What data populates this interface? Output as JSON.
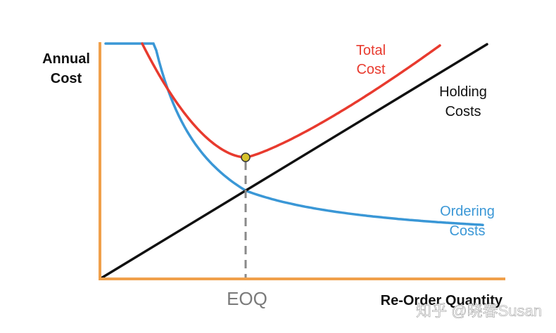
{
  "chart_data": {
    "type": "line",
    "ylabel_lines": [
      "Annual",
      "Cost"
    ],
    "xlabel": "Re-Order Quantity",
    "x_tick_label": "EOQ",
    "series": [
      {
        "key": "total",
        "label_lines": [
          "Total",
          "Cost"
        ],
        "color": "#e83a2e"
      },
      {
        "key": "holding",
        "label_lines": [
          "Holding",
          "Costs"
        ],
        "color": "#111111"
      },
      {
        "key": "ordering",
        "label_lines": [
          "Ordering",
          "Costs"
        ],
        "color": "#3a97d6"
      }
    ],
    "optimum_point": {
      "label": "EOQ",
      "series": "total",
      "color": "#d6c22a"
    },
    "axis_color": "#f0a04b",
    "guide_line": "dashed",
    "grid": false,
    "legend": "inline labels",
    "watermark": "知乎 @晓春Susan"
  }
}
